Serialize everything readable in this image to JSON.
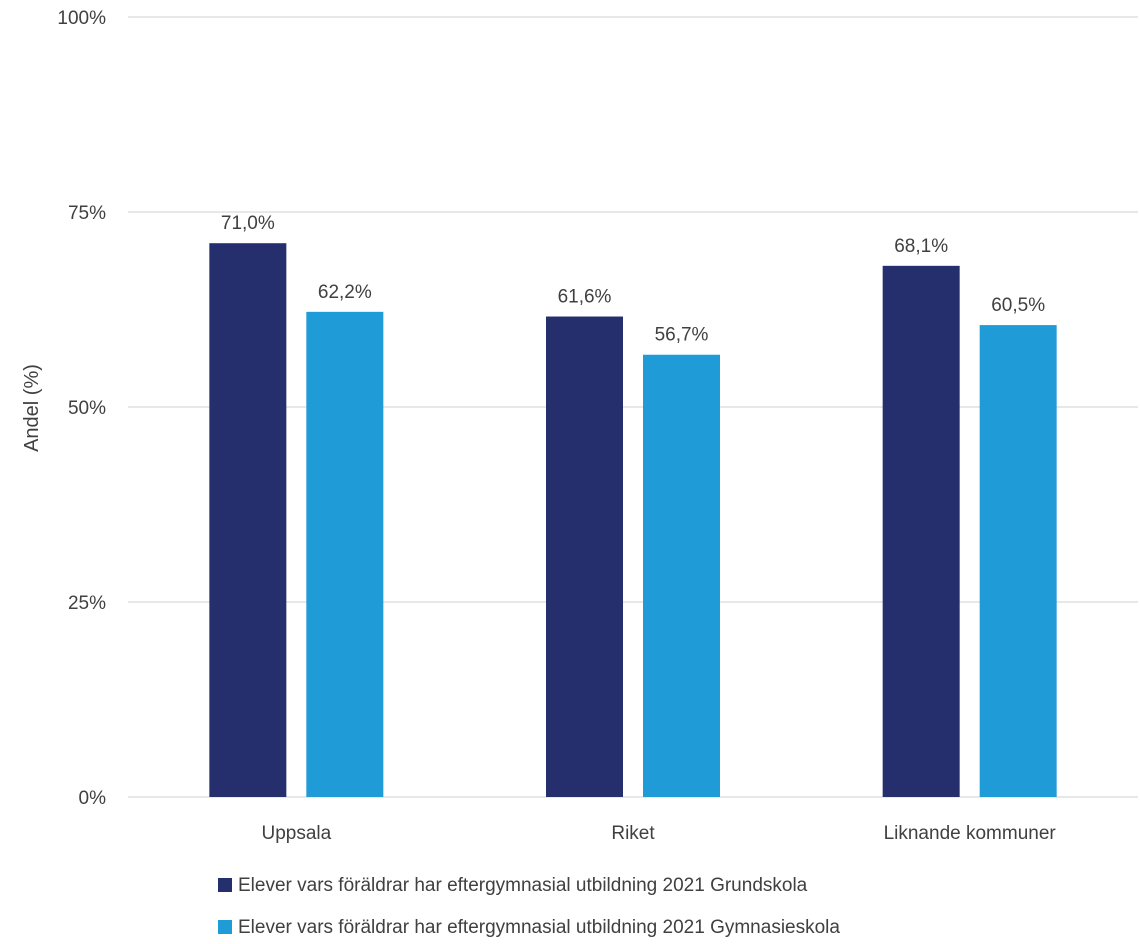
{
  "chart_data": {
    "type": "bar",
    "title": "",
    "xlabel": "",
    "ylabel": "Andel (%)",
    "ylim": [
      0,
      100
    ],
    "yticks": [
      0,
      25,
      50,
      75,
      100
    ],
    "ytick_labels": [
      "0%",
      "25%",
      "50%",
      "75%",
      "100%"
    ],
    "grid": true,
    "legend_position": "bottom",
    "categories": [
      "Uppsala",
      "Riket",
      "Liknande kommuner"
    ],
    "series": [
      {
        "name": "Elever vars föräldrar har eftergymnasial utbildning 2021 Grundskola",
        "color": "#262F6D",
        "values": [
          71.0,
          61.6,
          68.1
        ],
        "labels": [
          "71,0%",
          "61,6%",
          "68,1%"
        ]
      },
      {
        "name": "Elever vars föräldrar har eftergymnasial utbildning 2021 Gymnasieskola",
        "color": "#1F9BD8",
        "values": [
          62.2,
          56.7,
          60.5
        ],
        "labels": [
          "62,2%",
          "56,7%",
          "60,5%"
        ]
      }
    ]
  }
}
